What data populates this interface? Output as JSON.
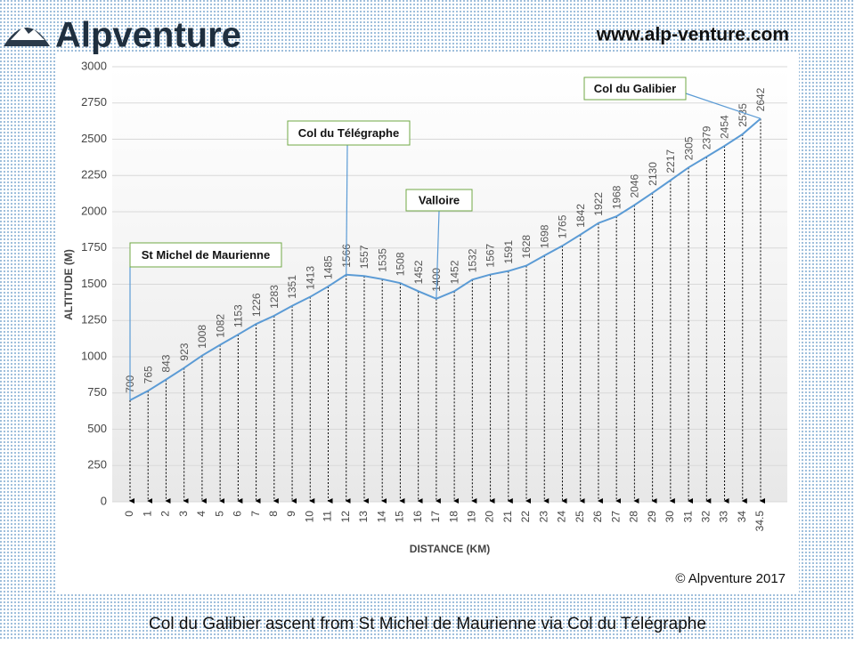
{
  "header": {
    "logo": "Alpventure",
    "url": "www.alp-venture.com"
  },
  "footer": {
    "copyright": "© Alpventure  2017",
    "caption": "Col du Galibier ascent from St Michel de Maurienne via Col du Télégraphe"
  },
  "chart_data": {
    "type": "line",
    "xlabel": "DISTANCE (KM)",
    "ylabel": "ALTITUDE (M)",
    "categories": [
      "0",
      "1",
      "2",
      "3",
      "4",
      "5",
      "6",
      "7",
      "8",
      "9",
      "10",
      "11",
      "12",
      "13",
      "14",
      "15",
      "16",
      "17",
      "18",
      "19",
      "20",
      "21",
      "22",
      "23",
      "24",
      "25",
      "26",
      "27",
      "28",
      "29",
      "30",
      "31",
      "32",
      "33",
      "34",
      "34.5"
    ],
    "values": [
      700,
      765,
      843,
      923,
      1008,
      1082,
      1153,
      1226,
      1283,
      1351,
      1413,
      1485,
      1566,
      1557,
      1535,
      1508,
      1452,
      1400,
      1452,
      1532,
      1567,
      1591,
      1628,
      1698,
      1765,
      1842,
      1922,
      1968,
      2046,
      2130,
      2217,
      2305,
      2379,
      2454,
      2535,
      2642
    ],
    "color": "#5b9bd5",
    "ylim": [
      0,
      3000
    ],
    "yticks": [
      0,
      250,
      500,
      750,
      1000,
      1250,
      1500,
      1750,
      2000,
      2250,
      2500,
      2750,
      3000
    ],
    "grid": true,
    "annotations": [
      {
        "text": "St Michel de Maurienne",
        "x": "0"
      },
      {
        "text": "Col du Télégraphe",
        "x": "12"
      },
      {
        "text": "Valloire",
        "x": "17"
      },
      {
        "text": "Col du Galibier",
        "x": "34.5"
      }
    ]
  }
}
